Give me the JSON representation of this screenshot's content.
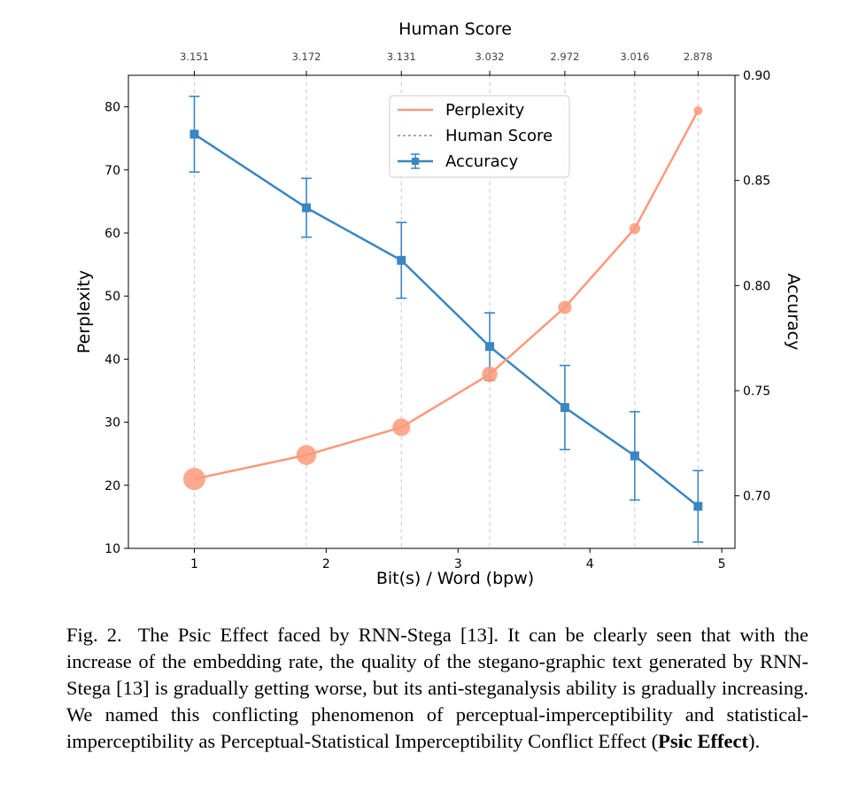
{
  "chart_data": {
    "type": "line",
    "top_axis_title": "Human Score",
    "xlabel": "Bit(s) / Word (bpw)",
    "ylabel_left": "Perplexity",
    "ylabel_right": "Accuracy",
    "xlim": [
      0.5,
      5.1
    ],
    "ylim_left": [
      10,
      85
    ],
    "ylim_right": [
      0.675,
      0.9
    ],
    "x_ticks": [
      1,
      2,
      3,
      4,
      5
    ],
    "y_left_ticks": [
      10,
      20,
      30,
      40,
      50,
      60,
      70,
      80
    ],
    "y_right_ticks": [
      0.7,
      0.75,
      0.8,
      0.85,
      0.9
    ],
    "grid": "vertical dashed lines at each bpw point",
    "legend_position": "top-center",
    "x": [
      1.0,
      1.85,
      2.57,
      3.24,
      3.81,
      4.34,
      4.82
    ],
    "human_scores": [
      "3.151",
      "3.172",
      "3.131",
      "3.032",
      "2.972",
      "3.016",
      "2.878"
    ],
    "series": [
      {
        "name": "Perplexity",
        "axis": "left",
        "color": "#fb9a7c",
        "values": [
          21.0,
          24.8,
          29.2,
          37.6,
          48.2,
          60.7,
          79.4
        ]
      },
      {
        "name": "Human Score",
        "axis": "top",
        "color": "#777777",
        "style": "dashed"
      },
      {
        "name": "Accuracy",
        "axis": "right",
        "color": "#3a86c0",
        "marker": "square",
        "values": [
          0.872,
          0.837,
          0.812,
          0.771,
          0.742,
          0.719,
          0.695
        ],
        "error": [
          0.018,
          0.014,
          0.018,
          0.016,
          0.02,
          0.021,
          0.017
        ]
      }
    ]
  },
  "caption": {
    "label": "Fig. 2.",
    "text_before_bold": "The Psic Effect faced by RNN-Stega [13]. It can be clearly seen that with the increase of the embedding rate, the quality of the stegano-graphic text generated by RNN-Stega [13] is gradually getting worse, but its anti-steganalysis ability is gradually increasing. We named this conflicting phenomenon of perceptual-imperceptibility and statistical-imperceptibility as Perceptual-Statistical Imperceptibility Conflict Effect (",
    "bold": "Psic Effect",
    "text_after_bold": ")."
  }
}
